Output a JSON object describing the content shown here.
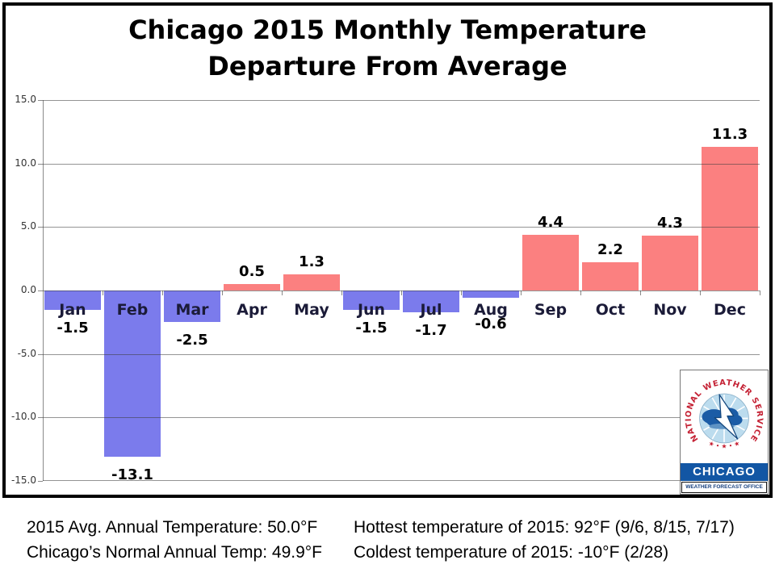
{
  "chart": {
    "title_line1": "Chicago 2015 Monthly Temperature",
    "title_line2": "Departure From Average"
  },
  "chart_data": {
    "type": "bar",
    "title": "Chicago 2015 Monthly Temperature Departure From Average",
    "categories": [
      "Jan",
      "Feb",
      "Mar",
      "Apr",
      "May",
      "Jun",
      "Jul",
      "Aug",
      "Sep",
      "Oct",
      "Nov",
      "Dec"
    ],
    "values": [
      -1.5,
      -13.1,
      -2.5,
      0.5,
      1.3,
      -1.5,
      -1.7,
      -0.6,
      4.4,
      2.2,
      4.3,
      11.3
    ],
    "value_labels": [
      "-1.5",
      "-13.1",
      "-2.5",
      "0.5",
      "1.3",
      "-1.5",
      "-1.7",
      "-0.6",
      "4.4",
      "2.2",
      "4.3",
      "11.3"
    ],
    "xlabel": "",
    "ylabel": "",
    "ylim": [
      -15,
      15
    ],
    "ytick_interval": 5,
    "ytick_labels": [
      "15.0",
      "10.0",
      "5.0",
      "0.0",
      "-5.0",
      "-10.0",
      "-15.0"
    ],
    "grid": true,
    "legend": false,
    "positive_color": "#fb8080",
    "negative_color": "#7b7bec"
  },
  "logo": {
    "arc_text": "NATIONAL WEATHER SERVICE",
    "stars_text": "★ ∙ ★ ∙ ★",
    "city": "CHICAGO",
    "office": "WEATHER FORECAST OFFICE"
  },
  "footer": {
    "left_line1": "2015 Avg. Annual Temperature: 50.0°F",
    "left_line2": "Chicago’s Normal Annual Temp: 49.9°F",
    "right_line1": "Hottest temperature of 2015: 92°F (9/6, 8/15, 7/17)",
    "right_line2": "Coldest temperature of 2015: -10°F (2/28)"
  }
}
